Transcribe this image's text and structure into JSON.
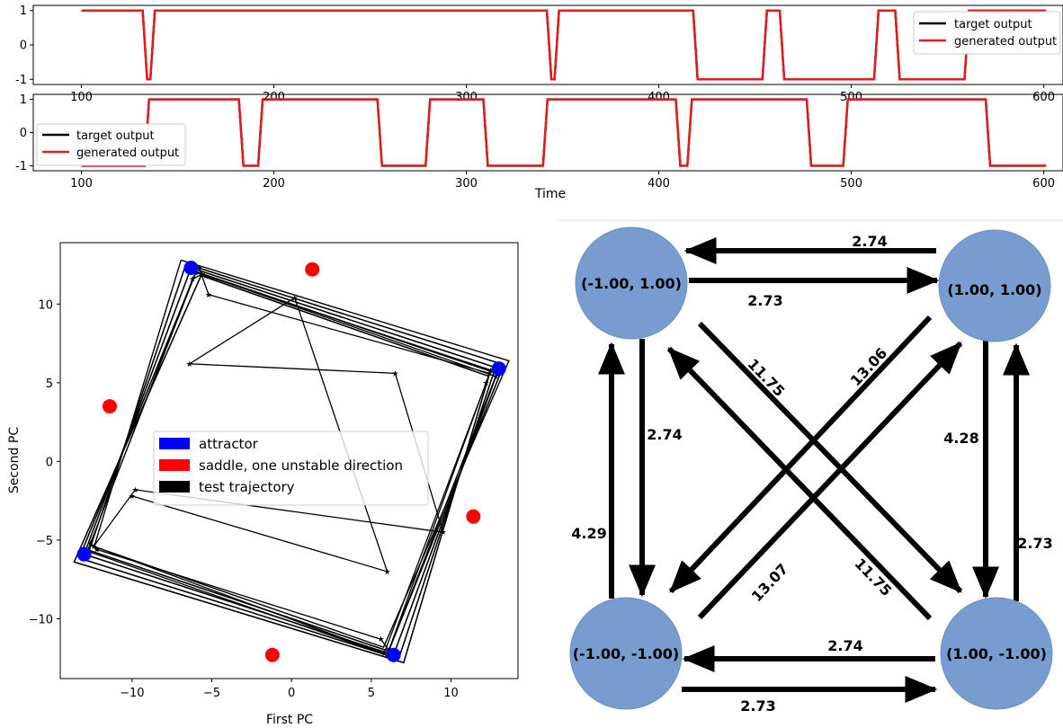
{
  "chart_data": [
    {
      "type": "line",
      "panel": "top",
      "xlim": [
        75,
        610
      ],
      "ylim": [
        -1.15,
        1.15
      ],
      "xticks": [
        100,
        200,
        300,
        400,
        500,
        600
      ],
      "yticks": [
        1,
        0,
        -1
      ],
      "legend_position": "upper right",
      "transitions": [
        [
          100,
          1
        ],
        [
          133,
          -1
        ],
        [
          137,
          1
        ],
        [
          343,
          -1
        ],
        [
          347,
          1
        ],
        [
          419,
          -1
        ],
        [
          455,
          1
        ],
        [
          464,
          -1
        ],
        [
          513,
          1
        ],
        [
          524,
          -1
        ],
        [
          560,
          1
        ],
        [
          600,
          1
        ]
      ],
      "series": [
        {
          "name": "target output",
          "color": "#000000"
        },
        {
          "name": "generated output",
          "color": "#e41a1c"
        }
      ]
    },
    {
      "type": "line",
      "panel": "bottom",
      "xlim": [
        75,
        610
      ],
      "ylim": [
        -1.15,
        1.15
      ],
      "xticks": [
        100,
        200,
        300,
        400,
        500,
        600
      ],
      "yticks": [
        1,
        0,
        -1
      ],
      "xlabel": "Time",
      "legend_position": "center left",
      "transitions": [
        [
          100,
          -1
        ],
        [
          134,
          1
        ],
        [
          183,
          -1
        ],
        [
          193,
          1
        ],
        [
          255,
          -1
        ],
        [
          280,
          1
        ],
        [
          310,
          -1
        ],
        [
          341,
          1
        ],
        [
          410,
          -1
        ],
        [
          416,
          1
        ],
        [
          478,
          -1
        ],
        [
          497,
          1
        ],
        [
          571,
          -1
        ],
        [
          600,
          -1
        ]
      ],
      "series": [
        {
          "name": "target output",
          "color": "#000000"
        },
        {
          "name": "generated output",
          "color": "#e41a1c"
        }
      ]
    },
    {
      "type": "scatter",
      "panel": "pca",
      "xlabel": "First PC",
      "ylabel": "Second PC",
      "xlim": [
        -14.5,
        14.2
      ],
      "ylim": [
        -13.8,
        13.9
      ],
      "xticks": [
        -10,
        -5,
        0,
        5,
        10
      ],
      "yticks": [
        10,
        5,
        0,
        -5,
        -10
      ],
      "legend_position": "center",
      "series": [
        {
          "name": "attractor",
          "color": "#0000ff",
          "points": [
            [
              -6.3,
              12.3
            ],
            [
              13.0,
              5.9
            ],
            [
              -13.0,
              -5.9
            ],
            [
              6.4,
              -12.3
            ]
          ]
        },
        {
          "name": "saddle, one unstable direction",
          "color": "#ff0000",
          "points": [
            [
              1.3,
              12.2
            ],
            [
              -11.4,
              3.5
            ],
            [
              11.4,
              -3.5
            ],
            [
              -1.2,
              -12.3
            ]
          ]
        },
        {
          "name": "test trajectory",
          "color": "#000000",
          "points": [
            [
              -5.8,
              12.3
            ],
            [
              -5.2,
              10.6
            ],
            [
              12.4,
              5.6
            ],
            [
              12.2,
              5.0
            ],
            [
              6.1,
              -12.0
            ],
            [
              5.6,
              -11.3
            ],
            [
              -12.2,
              -5.6
            ],
            [
              -12.6,
              -5.2
            ],
            [
              -6.2,
              11.6
            ],
            [
              -5.6,
              11.9
            ],
            [
              12.8,
              5.4
            ],
            [
              6.0,
              -12.3
            ],
            [
              -12.8,
              -5.7
            ],
            [
              -6.0,
              12.0
            ],
            [
              12.5,
              5.8
            ],
            [
              5.8,
              -12.2
            ],
            [
              -12.4,
              -5.4
            ],
            [
              -9.8,
              -1.8
            ],
            [
              9.5,
              -4.5
            ],
            [
              6.5,
              5.6
            ],
            [
              -6.4,
              6.2
            ],
            [
              0.2,
              10.4
            ],
            [
              6.0,
              -7.0
            ],
            [
              -10.0,
              -2.2
            ]
          ]
        }
      ]
    }
  ],
  "graph": {
    "nodes": {
      "tl": "(-1.00, 1.00)",
      "tr": "(1.00, 1.00)",
      "bl": "(-1.00, -1.00)",
      "br": "(1.00, -1.00)"
    },
    "node_color": "#779ccf",
    "edges": {
      "tr_tl": "2.74",
      "tl_tr": "2.73",
      "tl_bl": "2.74",
      "bl_tl": "4.29",
      "tr_br": "4.28",
      "br_tr": "2.73",
      "br_bl": "2.74",
      "bl_br": "2.73",
      "tl_br": "11.75",
      "br_tl": "11.75",
      "tr_bl": "13.06",
      "bl_tr": "13.07"
    }
  }
}
